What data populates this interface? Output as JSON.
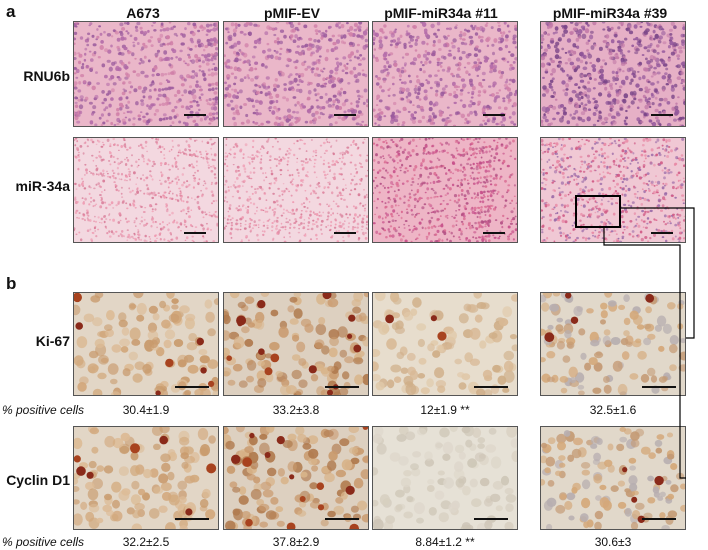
{
  "panels": {
    "a": "a",
    "b": "b"
  },
  "columns": [
    "A673",
    "pMIF-EV",
    "pMIF-miR34a #11",
    "pMIF-miR34a #39"
  ],
  "rows_a": [
    "RNU6b",
    "miR-34a"
  ],
  "rows_b": [
    "Ki-67",
    "Cyclin D1"
  ],
  "percent_label": "% positive cells",
  "ki67_values": [
    "30.4±1.9",
    "33.2±3.8",
    "12±1.9 **",
    "32.5±1.6"
  ],
  "cyclin_values": [
    "32.2±2.5",
    "37.8±2.9",
    "8.84±1.2 **",
    "30.6±3"
  ],
  "colors": {
    "he_pink": "#e9a5bd",
    "he_purple": "#8f4f93",
    "ihc_bg": "#e8ddd0",
    "ihc_brown": "#a45a2a"
  }
}
